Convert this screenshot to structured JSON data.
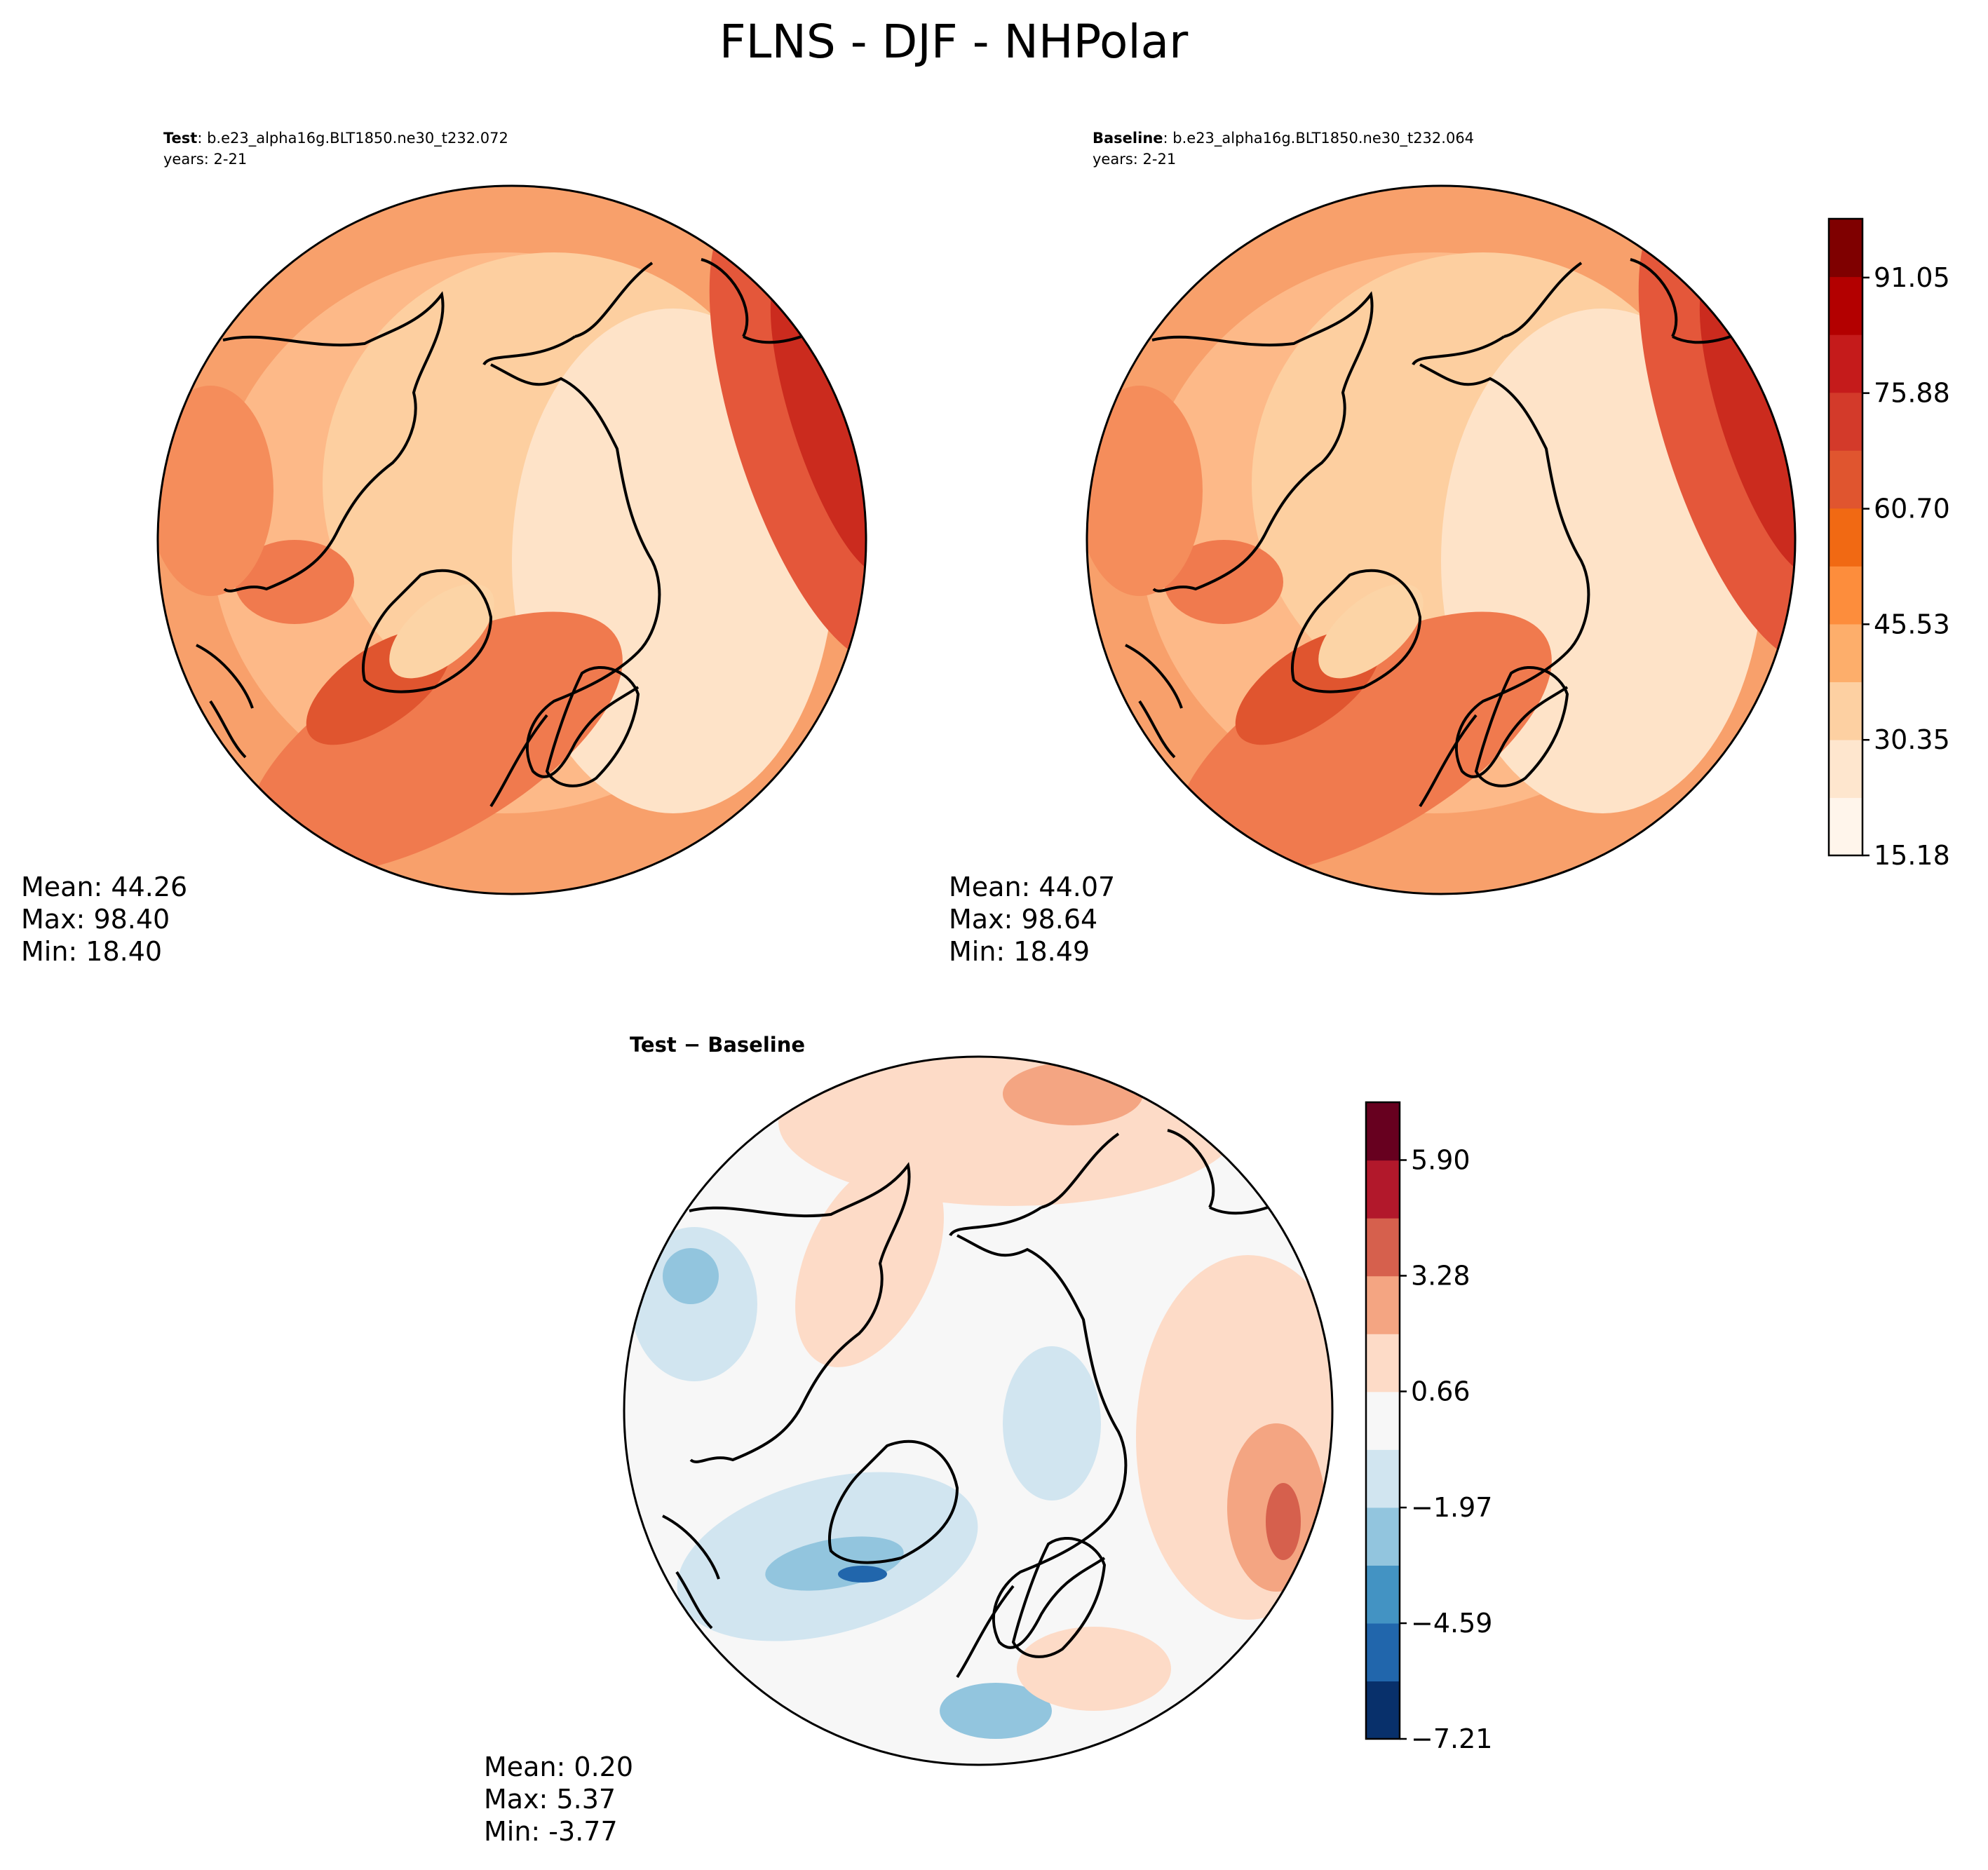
{
  "figure": {
    "title": "FLNS - DJF - NHPolar"
  },
  "panels": {
    "test": {
      "label_bold": "Test",
      "label_rest": ": b.e23_alpha16g.BLT1850.ne30_t232.072",
      "years": "years: 2-21",
      "mean": "Mean: 44.26",
      "max": "Max: 98.40",
      "min": "Min: 18.40"
    },
    "baseline": {
      "label_bold": "Baseline",
      "label_rest": ": b.e23_alpha16g.BLT1850.ne30_t232.064",
      "years": "years: 2-21",
      "mean": "Mean: 44.07",
      "max": "Max: 98.64",
      "min": "Min: 18.49"
    },
    "diff": {
      "label_bold": "Test − Baseline",
      "mean": "Mean:  0.20",
      "max": "Max:  5.37",
      "min": "Min: -3.77"
    }
  },
  "colors": {
    "reds_levels": [
      "#fff5eb",
      "#fee6ce",
      "#fdd0a2",
      "#fdae6b",
      "#fd8d3c",
      "#f16913",
      "#e0552f",
      "#d33a2a",
      "#c51b1b",
      "#b30000",
      "#7f0000"
    ],
    "rdbu_levels": [
      "#08306b",
      "#2166ac",
      "#4393c3",
      "#92c5de",
      "#d1e5f0",
      "#f7f7f7",
      "#fddbc7",
      "#f4a582",
      "#d6604d",
      "#b2182b",
      "#67001f"
    ],
    "coastline": "#000000"
  },
  "chart_data": [
    {
      "type": "heatmap",
      "projection": "north polar stereographic",
      "title": "Test",
      "colorbar": "shared",
      "stats": {
        "mean": 44.26,
        "max": 98.4,
        "min": 18.4
      }
    },
    {
      "type": "heatmap",
      "projection": "north polar stereographic",
      "title": "Baseline",
      "colorbar": {
        "ticks": [
          "15.18",
          "30.35",
          "45.53",
          "60.70",
          "75.88",
          "91.05"
        ],
        "range": [
          15.18,
          98.77
        ],
        "levels": 11
      },
      "stats": {
        "mean": 44.07,
        "max": 98.64,
        "min": 18.49
      }
    },
    {
      "type": "heatmap",
      "projection": "north polar stereographic",
      "title": "Test − Baseline",
      "colorbar": {
        "ticks": [
          "−7.21",
          "−4.59",
          "−1.97",
          "0.66",
          "3.28",
          "5.90"
        ],
        "range": [
          -7.21,
          7.21
        ],
        "levels": 11
      },
      "stats": {
        "mean": 0.2,
        "max": 5.37,
        "min": -3.77
      }
    }
  ]
}
